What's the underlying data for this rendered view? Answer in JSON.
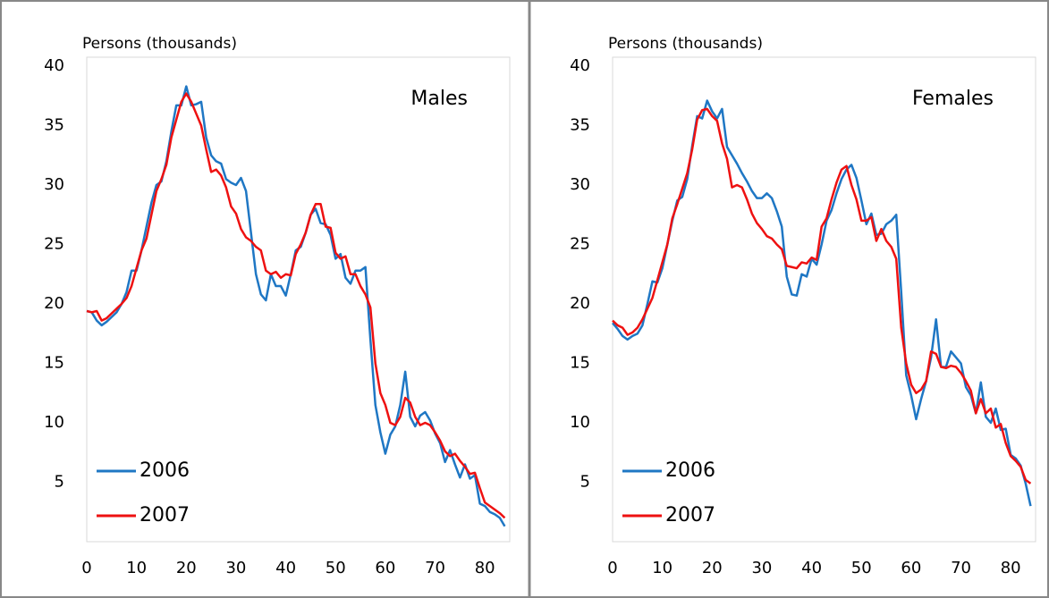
{
  "chart_data": [
    {
      "type": "line",
      "ylabel": "Persons (thousands)",
      "annotation": "Males",
      "x": [
        0,
        1,
        2,
        3,
        4,
        5,
        6,
        7,
        8,
        9,
        10,
        11,
        12,
        13,
        14,
        15,
        16,
        17,
        18,
        19,
        20,
        21,
        22,
        23,
        24,
        25,
        26,
        27,
        28,
        29,
        30,
        31,
        32,
        33,
        34,
        35,
        36,
        37,
        38,
        39,
        40,
        41,
        42,
        43,
        44,
        45,
        46,
        47,
        48,
        49,
        50,
        51,
        52,
        53,
        54,
        55,
        56,
        57,
        58,
        59,
        60,
        61,
        62,
        63,
        64,
        65,
        66,
        67,
        68,
        69,
        70,
        71,
        72,
        73,
        74,
        75,
        76,
        77,
        78,
        79,
        80,
        81,
        82,
        83,
        84
      ],
      "series": [
        {
          "name": "2006",
          "color": "#1f77c4",
          "values": [
            19.4,
            19.3,
            18.6,
            18.2,
            18.5,
            18.9,
            19.3,
            20,
            21,
            22.8,
            22.8,
            24.5,
            26.5,
            28.5,
            30,
            30.3,
            32,
            34.5,
            36.7,
            36.7,
            38.3,
            36.7,
            36.8,
            37,
            34,
            32.5,
            32,
            31.8,
            30.5,
            30.2,
            30,
            30.6,
            29.5,
            26,
            22.5,
            20.8,
            20.3,
            22.5,
            21.5,
            21.5,
            20.7,
            22.5,
            24.5,
            24.8,
            26,
            27.5,
            28,
            26.8,
            26.7,
            25.8,
            23.8,
            24.2,
            22.2,
            21.7,
            22.8,
            22.8,
            23.1,
            17,
            11.5,
            9.2,
            7.4,
            9,
            9.7,
            11.5,
            14.3,
            10.5,
            9.7,
            10.6,
            10.9,
            10.2,
            9.1,
            8.3,
            6.7,
            7.7,
            6.5,
            5.4,
            6.5,
            5.3,
            5.6,
            3.2,
            3,
            2.5,
            2.3,
            2,
            1.3
          ]
        },
        {
          "name": "2007",
          "color": "#ee1111",
          "values": [
            19.4,
            19.3,
            19.4,
            18.6,
            18.8,
            19.2,
            19.6,
            20,
            20.5,
            21.5,
            23,
            24.5,
            25.5,
            27.5,
            29.5,
            30.5,
            31.7,
            34,
            35.5,
            37,
            37.7,
            37,
            36,
            35,
            33,
            31.1,
            31.3,
            30.8,
            29.8,
            28.2,
            27.6,
            26.3,
            25.6,
            25.3,
            24.8,
            24.5,
            22.8,
            22.5,
            22.7,
            22.2,
            22.5,
            22.4,
            24.2,
            25,
            26,
            27.5,
            28.4,
            28.4,
            26.5,
            26.4,
            24.3,
            23.8,
            24,
            22.5,
            22.5,
            21.5,
            20.8,
            19.7,
            15,
            12.5,
            11.5,
            10,
            9.8,
            10.5,
            12.1,
            11.7,
            10.5,
            9.8,
            10,
            9.8,
            9.2,
            8.5,
            7.6,
            7.2,
            7.4,
            6.8,
            6.3,
            5.7,
            5.8,
            4.5,
            3.3,
            3,
            2.7,
            2.4,
            2
          ]
        }
      ],
      "xlim": [
        0,
        85
      ],
      "ylim": [
        0,
        40
      ],
      "xticks": [
        0,
        10,
        20,
        30,
        40,
        50,
        60,
        70,
        80
      ],
      "yticks": [
        5,
        10,
        15,
        20,
        25,
        30,
        35,
        40
      ],
      "legend": "lower left"
    },
    {
      "type": "line",
      "ylabel": "Persons (thousands)",
      "annotation": "Females",
      "x": [
        0,
        1,
        2,
        3,
        4,
        5,
        6,
        7,
        8,
        9,
        10,
        11,
        12,
        13,
        14,
        15,
        16,
        17,
        18,
        19,
        20,
        21,
        22,
        23,
        24,
        25,
        26,
        27,
        28,
        29,
        30,
        31,
        32,
        33,
        34,
        35,
        36,
        37,
        38,
        39,
        40,
        41,
        42,
        43,
        44,
        45,
        46,
        47,
        48,
        49,
        50,
        51,
        52,
        53,
        54,
        55,
        56,
        57,
        58,
        59,
        60,
        61,
        62,
        63,
        64,
        65,
        66,
        67,
        68,
        69,
        70,
        71,
        72,
        73,
        74,
        75,
        76,
        77,
        78,
        79,
        80,
        81,
        82,
        83,
        84
      ],
      "series": [
        {
          "name": "2006",
          "color": "#1f77c4",
          "values": [
            18.4,
            17.9,
            17.3,
            17,
            17.3,
            17.5,
            18.2,
            20,
            21.9,
            21.8,
            23,
            25,
            27,
            28.7,
            29,
            30.5,
            33.3,
            35.8,
            35.6,
            37.1,
            36.2,
            35.6,
            36.4,
            33.2,
            32.5,
            31.8,
            31,
            30.3,
            29.5,
            28.9,
            28.9,
            29.3,
            28.9,
            27.8,
            26.5,
            22.3,
            20.8,
            20.7,
            22.5,
            22.3,
            23.8,
            23.3,
            25,
            27,
            27.9,
            29.3,
            30.5,
            31.3,
            31.7,
            30.6,
            28.7,
            26.7,
            27.6,
            25.8,
            25.9,
            26.7,
            27,
            27.5,
            21,
            14,
            12.3,
            10.3,
            12,
            13.5,
            15.5,
            18.7,
            14.7,
            14.7,
            16,
            15.5,
            15,
            13,
            12.3,
            10.8,
            13.4,
            10.5,
            10,
            11.2,
            9.4,
            9.5,
            7.3,
            7,
            6.4,
            4.9,
            3
          ]
        },
        {
          "name": "2007",
          "color": "#ee1111",
          "values": [
            18.6,
            18.2,
            18,
            17.4,
            17.6,
            18,
            18.7,
            19.6,
            20.5,
            22,
            23.5,
            25,
            27.2,
            28.4,
            29.7,
            31,
            33,
            35.5,
            36.3,
            36.4,
            35.8,
            35.4,
            33.5,
            32.2,
            29.8,
            30,
            29.8,
            28.8,
            27.6,
            26.8,
            26.3,
            25.7,
            25.5,
            25,
            24.6,
            23.2,
            23.1,
            23,
            23.5,
            23.4,
            23.9,
            23.7,
            26.5,
            27.2,
            28.8,
            30.2,
            31.3,
            31.6,
            30,
            28.8,
            27,
            27,
            27.3,
            25.3,
            26.3,
            25.3,
            24.8,
            23.8,
            18,
            15,
            13.2,
            12.5,
            12.8,
            13.5,
            16,
            15.8,
            14.7,
            14.6,
            14.8,
            14.7,
            14.2,
            13.5,
            12.7,
            10.8,
            12,
            10.8,
            11.2,
            9.6,
            9.9,
            8.3,
            7.2,
            6.8,
            6.3,
            5.2,
            4.9
          ]
        }
      ],
      "xlim": [
        0,
        85
      ],
      "ylim": [
        0,
        40
      ],
      "xticks": [
        0,
        10,
        20,
        30,
        40,
        50,
        60,
        70,
        80
      ],
      "yticks": [
        5,
        10,
        15,
        20,
        25,
        30,
        35,
        40
      ],
      "legend": "lower left"
    }
  ]
}
